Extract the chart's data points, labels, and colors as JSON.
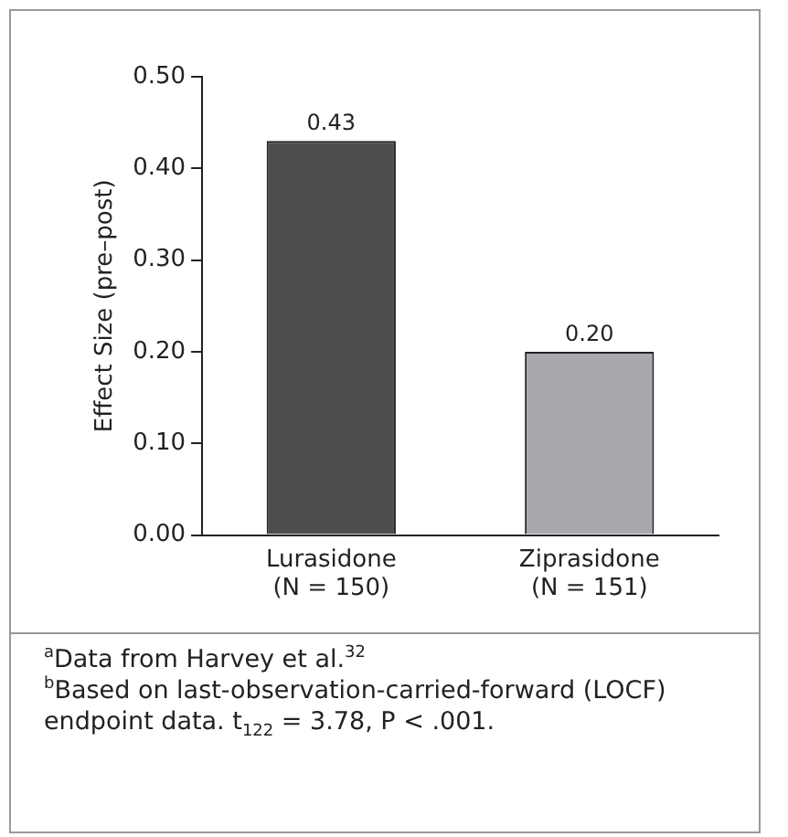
{
  "chart_data": {
    "type": "bar",
    "ylabel": "Effect Size (pre–post)",
    "categories": [
      "Lurasidone\n(N = 150)",
      "Ziprasidone\n(N = 151)"
    ],
    "values": [
      0.43,
      0.2
    ],
    "colors": [
      "#4d4d4f",
      "#a7a9ac"
    ],
    "value_labels": [
      "0.43",
      "0.20"
    ],
    "ylim": [
      0,
      0.5
    ],
    "yticks": [
      {
        "value": 0,
        "label": "0.00"
      },
      {
        "value": 0.1,
        "label": "0.10"
      },
      {
        "value": 0.2,
        "label": "0.20"
      },
      {
        "value": 0.3,
        "label": "0.30"
      },
      {
        "value": 0.4,
        "label": "0.40"
      },
      {
        "value": 0.5,
        "label": "0.50"
      }
    ],
    "grid": false,
    "legend": false,
    "annotations": [
      "$^{a}$Data from Harvey et al.$^{32}$",
      "$^{b}$Based on last-observation-carried-forward (LOCF) endpoint data. t$_{122}$ = 3.78, P < .001."
    ]
  }
}
